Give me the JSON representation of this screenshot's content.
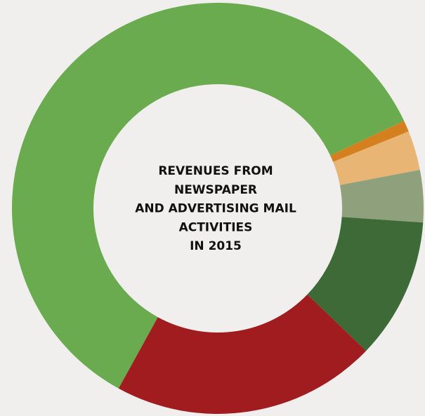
{
  "chart_data": {
    "type": "donut",
    "title": [
      "REVENUES FROM",
      "NEWSPAPER",
      "AND ADVERTISING MAIL",
      "ACTIVITIES",
      "IN 2015"
    ],
    "values": [
      60,
      0.9,
      3.1,
      4.1,
      11.1,
      20.8
    ],
    "colors": [
      "#6aab50",
      "#d4801e",
      "#e8b574",
      "#8fa07c",
      "#3e6a38",
      "#a01c1e"
    ]
  }
}
